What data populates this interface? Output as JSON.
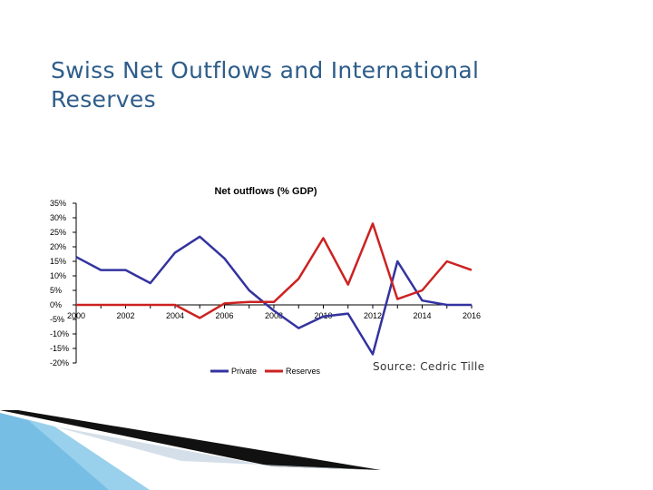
{
  "slide": {
    "title": "Swiss Net Outflows and International Reserves",
    "source": "Source: Cedric Tille"
  },
  "colors": {
    "title": "#2e5d8a",
    "private": "#3333a0",
    "reserves": "#cc2222",
    "deco_blue": "#5fb3e0",
    "deco_dark": "#111111"
  },
  "chart_data": {
    "type": "line",
    "title": "Net outflows (% GDP)",
    "xlabel": "",
    "ylabel": "",
    "x": [
      2000,
      2001,
      2002,
      2003,
      2004,
      2005,
      2006,
      2007,
      2008,
      2009,
      2010,
      2011,
      2012,
      2013,
      2014,
      2015,
      2016
    ],
    "x_tick_labels": [
      "2000",
      "2002",
      "2004",
      "2006",
      "2008",
      "2010",
      "2012",
      "2014",
      "2016"
    ],
    "x_ticks": [
      2000,
      2002,
      2004,
      2006,
      2008,
      2010,
      2012,
      2014,
      2016
    ],
    "xlim": [
      2000,
      2016
    ],
    "ylim": [
      -20,
      35
    ],
    "y_ticks": [
      35,
      30,
      25,
      20,
      15,
      10,
      5,
      0,
      -5,
      -10,
      -15,
      -20
    ],
    "y_tick_labels": [
      "35%",
      "30%",
      "25%",
      "20%",
      "15%",
      "10%",
      "5%",
      "0%",
      "-5%",
      "-10%",
      "-15%",
      "-20%"
    ],
    "grid": false,
    "legend_position": "bottom",
    "series": [
      {
        "name": "Private",
        "color": "#3333a0",
        "values": [
          16.5,
          12,
          12,
          7.5,
          18,
          23.5,
          16,
          5,
          -2,
          -8,
          -4,
          -3,
          -17,
          15,
          1.5,
          0,
          0
        ]
      },
      {
        "name": "Reserves",
        "color": "#cc2222",
        "values": [
          0,
          0,
          0,
          0,
          0,
          -4.5,
          0.5,
          1,
          1,
          9,
          23,
          7,
          28,
          2,
          5,
          15,
          12
        ]
      }
    ]
  }
}
